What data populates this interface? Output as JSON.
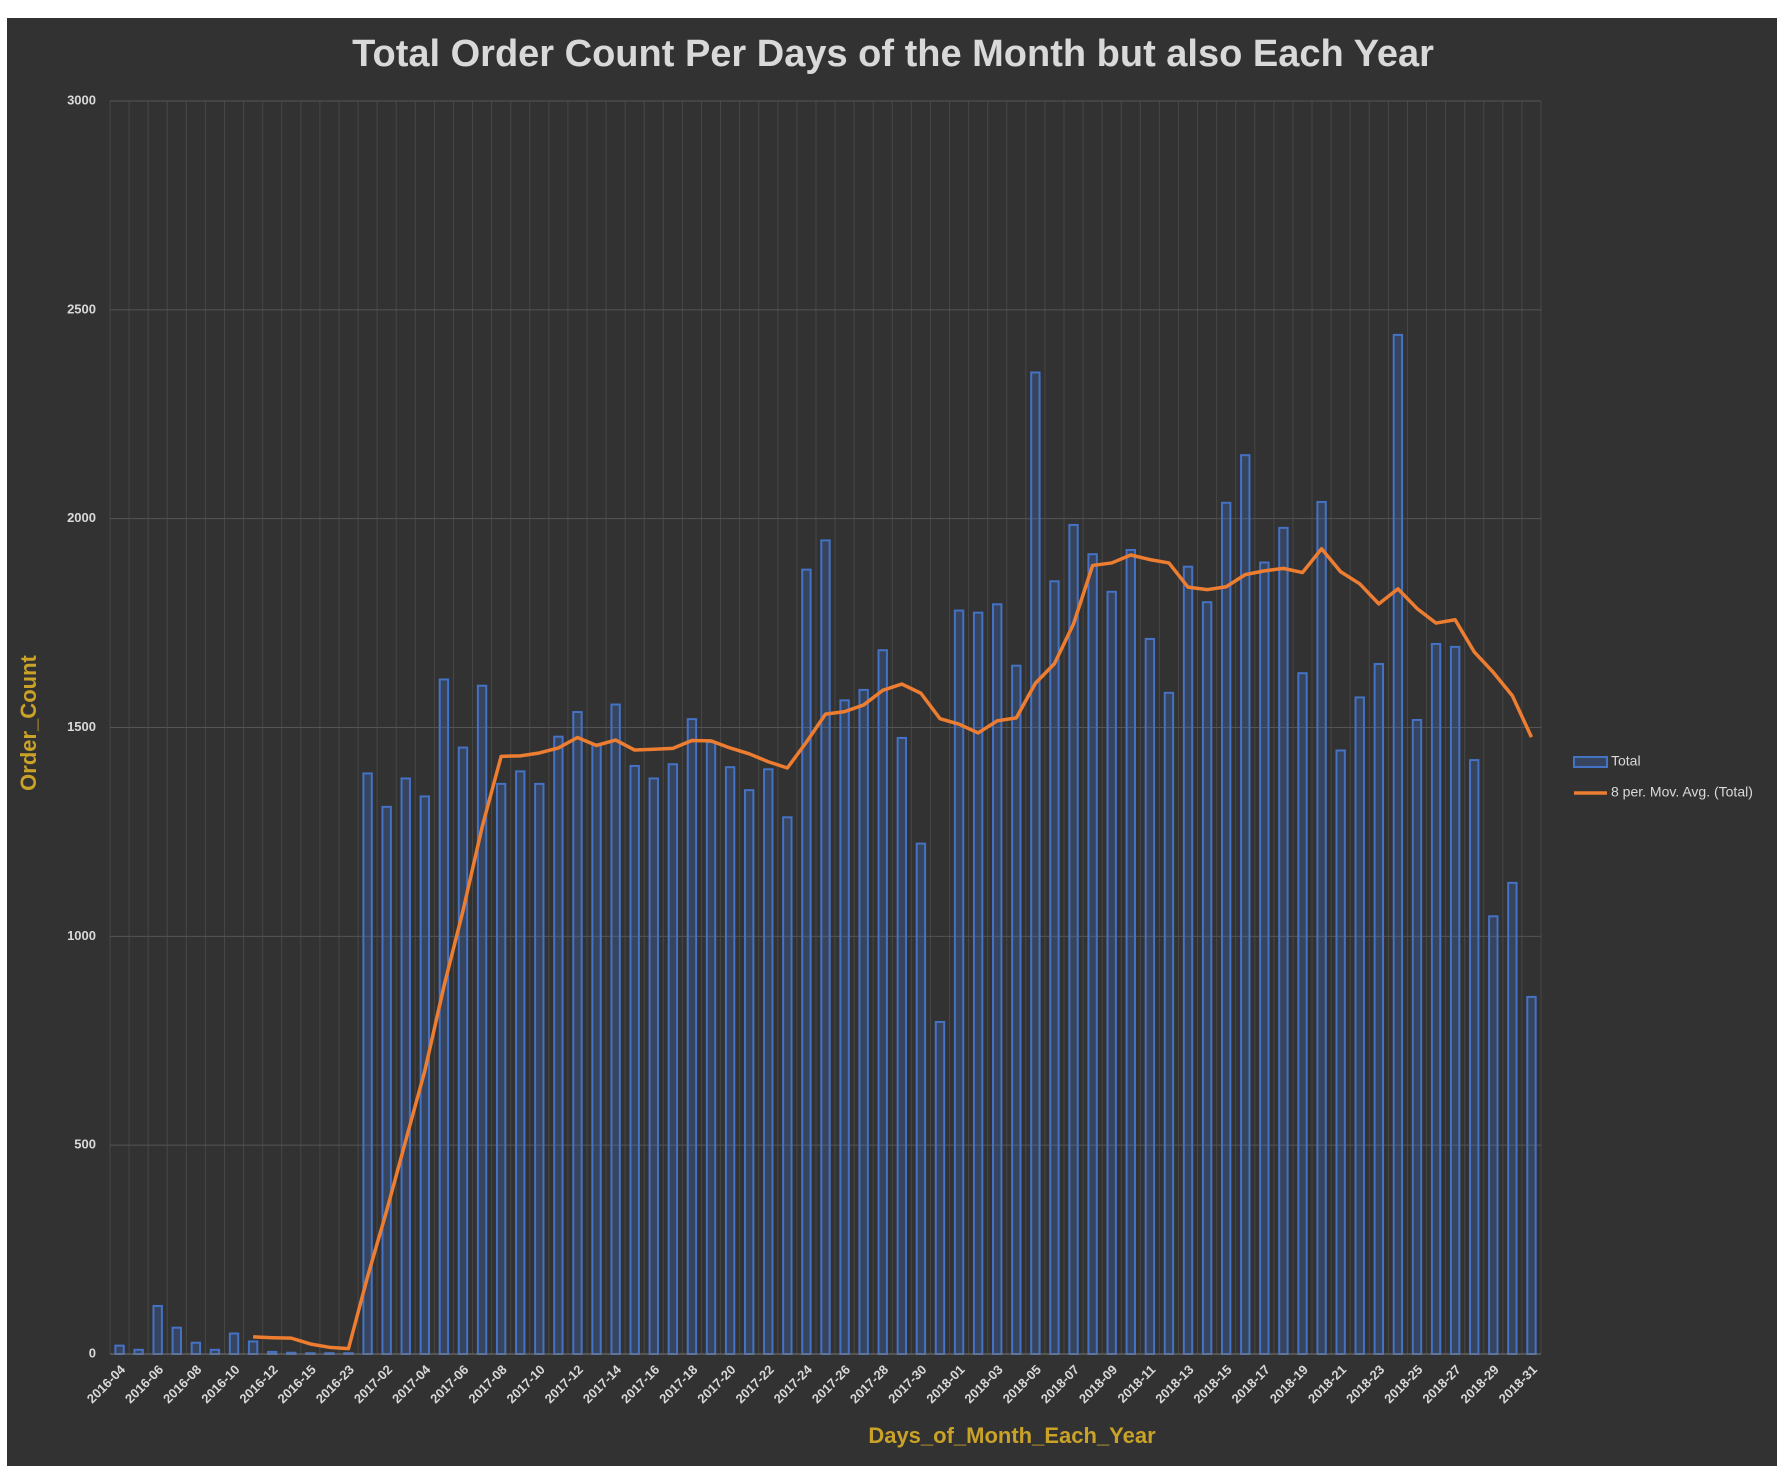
{
  "chart_data": {
    "type": "bar",
    "title": "Total Order Count Per Days of the Month but also Each Year",
    "xlabel": "Days_of_Month_Each_Year",
    "ylabel": "Order_Count",
    "categories": [
      "2016-04",
      null,
      "2016-06",
      null,
      "2016-08",
      null,
      "2016-10",
      null,
      "2016-12",
      null,
      "2016-15",
      null,
      "2016-23",
      null,
      "2017-02",
      null,
      "2017-04",
      null,
      "2017-06",
      null,
      "2017-08",
      null,
      "2017-10",
      null,
      "2017-12",
      null,
      "2017-14",
      null,
      "2017-16",
      null,
      "2017-18",
      null,
      "2017-20",
      null,
      "2017-22",
      null,
      "2017-24",
      null,
      "2017-26",
      null,
      "2017-28",
      null,
      "2017-30",
      null,
      "2018-01",
      null,
      "2018-03",
      null,
      "2018-05",
      null,
      "2018-07",
      null,
      "2018-09",
      null,
      "2018-11",
      null,
      "2018-13",
      null,
      "2018-15",
      null,
      "2018-17",
      null,
      "2018-19",
      null,
      "2018-21",
      null,
      "2018-23",
      null,
      "2018-25",
      null,
      "2018-27",
      null,
      "2018-29",
      null,
      "2018-31"
    ],
    "series": [
      {
        "name": "Total",
        "type": "bar",
        "color": "#4472c4",
        "values": [
          20,
          10,
          115,
          63,
          27,
          10,
          49,
          30,
          5,
          3,
          2,
          2,
          2,
          1390,
          1310,
          1378,
          1335,
          1615,
          1452,
          1600,
          1365,
          1395,
          1365,
          1478,
          1537,
          1460,
          1555,
          1408,
          1378,
          1412,
          1520,
          1465,
          1405,
          1350,
          1400,
          1285,
          1878,
          1948,
          1565,
          1590,
          1685,
          1475,
          1222,
          795,
          1780,
          1775,
          1795,
          1648,
          2350,
          1850,
          1985,
          1915,
          1825,
          1925,
          1712,
          1583,
          1885,
          1800,
          2038,
          2152,
          1895,
          1978,
          1630,
          2040,
          1445,
          1572,
          1652,
          2440,
          1518,
          1700,
          1693,
          1422,
          1048,
          1128,
          855
        ]
      },
      {
        "name": "8 per. Mov. Avg. (Total)",
        "type": "line",
        "color": "#ed7d31",
        "values": [
          null,
          null,
          null,
          null,
          null,
          null,
          null,
          41,
          39,
          38,
          24,
          16,
          13,
          185,
          343,
          511,
          678,
          880,
          1061,
          1261,
          1431,
          1432,
          1439,
          1451,
          1476,
          1457,
          1470,
          1446,
          1448,
          1450,
          1469,
          1468,
          1451,
          1437,
          1418,
          1403,
          1465,
          1532,
          1538,
          1554,
          1589,
          1604,
          1582,
          1521,
          1508,
          1487,
          1516,
          1523,
          1606,
          1653,
          1748,
          1888,
          1894,
          1913,
          1902,
          1894,
          1836,
          1830,
          1837,
          1866,
          1875,
          1881,
          1871,
          1928,
          1873,
          1844,
          1796,
          1832,
          1785,
          1750,
          1758,
          1681,
          1632,
          1576,
          1477
        ]
      }
    ],
    "ylim": [
      0,
      3000
    ],
    "yticks": [
      0,
      500,
      1000,
      1500,
      2000,
      2500,
      3000
    ],
    "grid": true,
    "legend": "right"
  }
}
